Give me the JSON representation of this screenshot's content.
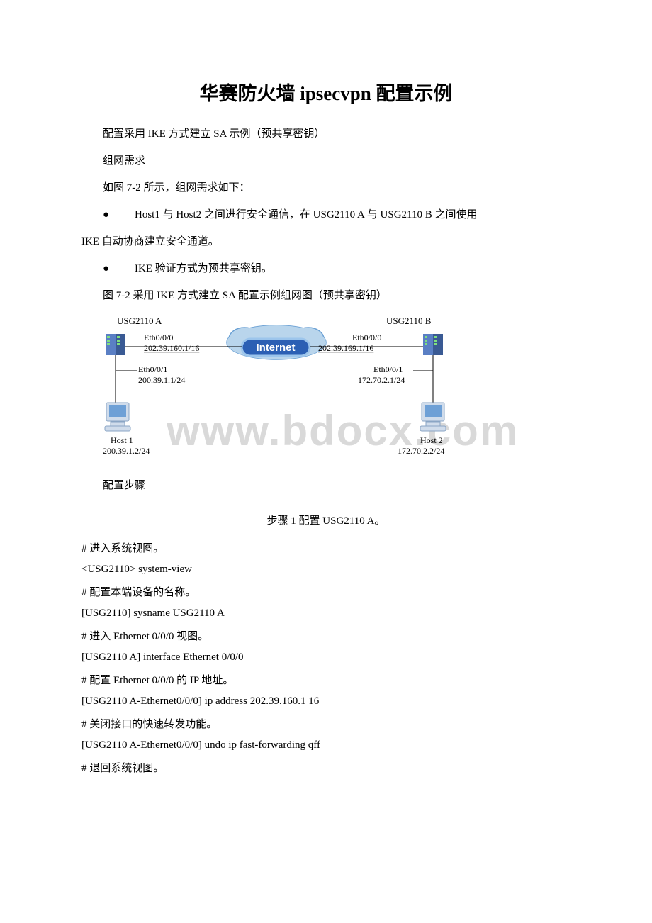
{
  "title": "华赛防火墙 ipsecvpn 配置示例",
  "intro": {
    "line1": "配置采用 IKE 方式建立 SA 示例（预共享密钥）",
    "line2": "组网需求",
    "line3": "如图 7-2 所示，组网需求如下：",
    "bullet1": "Host1 与 Host2 之间进行安全通信，在 USG2110 A 与 USG2110 B 之间使用",
    "bullet1b": "IKE 自动协商建立安全通道。",
    "bullet2": "IKE 验证方式为预共享密钥。",
    "caption": "图 7-2 采用 IKE 方式建立 SA 配置示例组网图（预共享密钥）"
  },
  "diagram": {
    "device_left": "USG2110 A",
    "device_right": "USG2110 B",
    "left_top_if": "Eth0/0/0",
    "left_top_ip": "202.39.160.1/16",
    "right_top_if": "Eth0/0/0",
    "right_top_ip": "202.39.169.1/16",
    "left_bot_if": "Eth0/0/1",
    "left_bot_ip": "200.39.1.1/24",
    "right_bot_if": "Eth0/0/1",
    "right_bot_ip": "172.70.2.1/24",
    "host1_label": "Host 1",
    "host1_ip": "200.39.1.2/24",
    "host2_label": "Host 2",
    "host2_ip": "172.70.2.2/24",
    "internet_label": "Internet",
    "colors": {
      "internet_fill": "#2b5fb4",
      "internet_stroke": "#9cc5ec",
      "internet_text": "#ffffff",
      "device_body": "#5a7fc4",
      "device_dark": "#3a5a94",
      "host_screen": "#6ea0d6",
      "host_body": "#d0dceb",
      "cloud_fill": "#b9d5ec",
      "cloud_stroke": "#6aa0d4",
      "line": "#000000",
      "text": "#000000"
    }
  },
  "config": {
    "section_label": "配置步骤",
    "step_heading": "步骤 1     配置 USG2110 A。",
    "lines": [
      {
        "t": "comment",
        "v": "# 进入系统视图。"
      },
      {
        "t": "code",
        "v": "<USG2110> system-view"
      },
      {
        "t": "comment",
        "v": "# 配置本端设备的名称。"
      },
      {
        "t": "code",
        "v": "[USG2110] sysname USG2110 A"
      },
      {
        "t": "comment",
        "v": "# 进入 Ethernet 0/0/0 视图。"
      },
      {
        "t": "code",
        "v": "[USG2110 A] interface Ethernet 0/0/0"
      },
      {
        "t": "comment",
        "v": "# 配置 Ethernet 0/0/0 的 IP 地址。"
      },
      {
        "t": "code",
        "v": "[USG2110 A-Ethernet0/0/0] ip address 202.39.160.1 16"
      },
      {
        "t": "comment",
        "v": "# 关闭接口的快速转发功能。"
      },
      {
        "t": "code",
        "v": "[USG2110 A-Ethernet0/0/0] undo ip fast-forwarding qff"
      },
      {
        "t": "comment",
        "v": "# 退回系统视图。"
      }
    ]
  },
  "watermark": "www.bdocx.com"
}
